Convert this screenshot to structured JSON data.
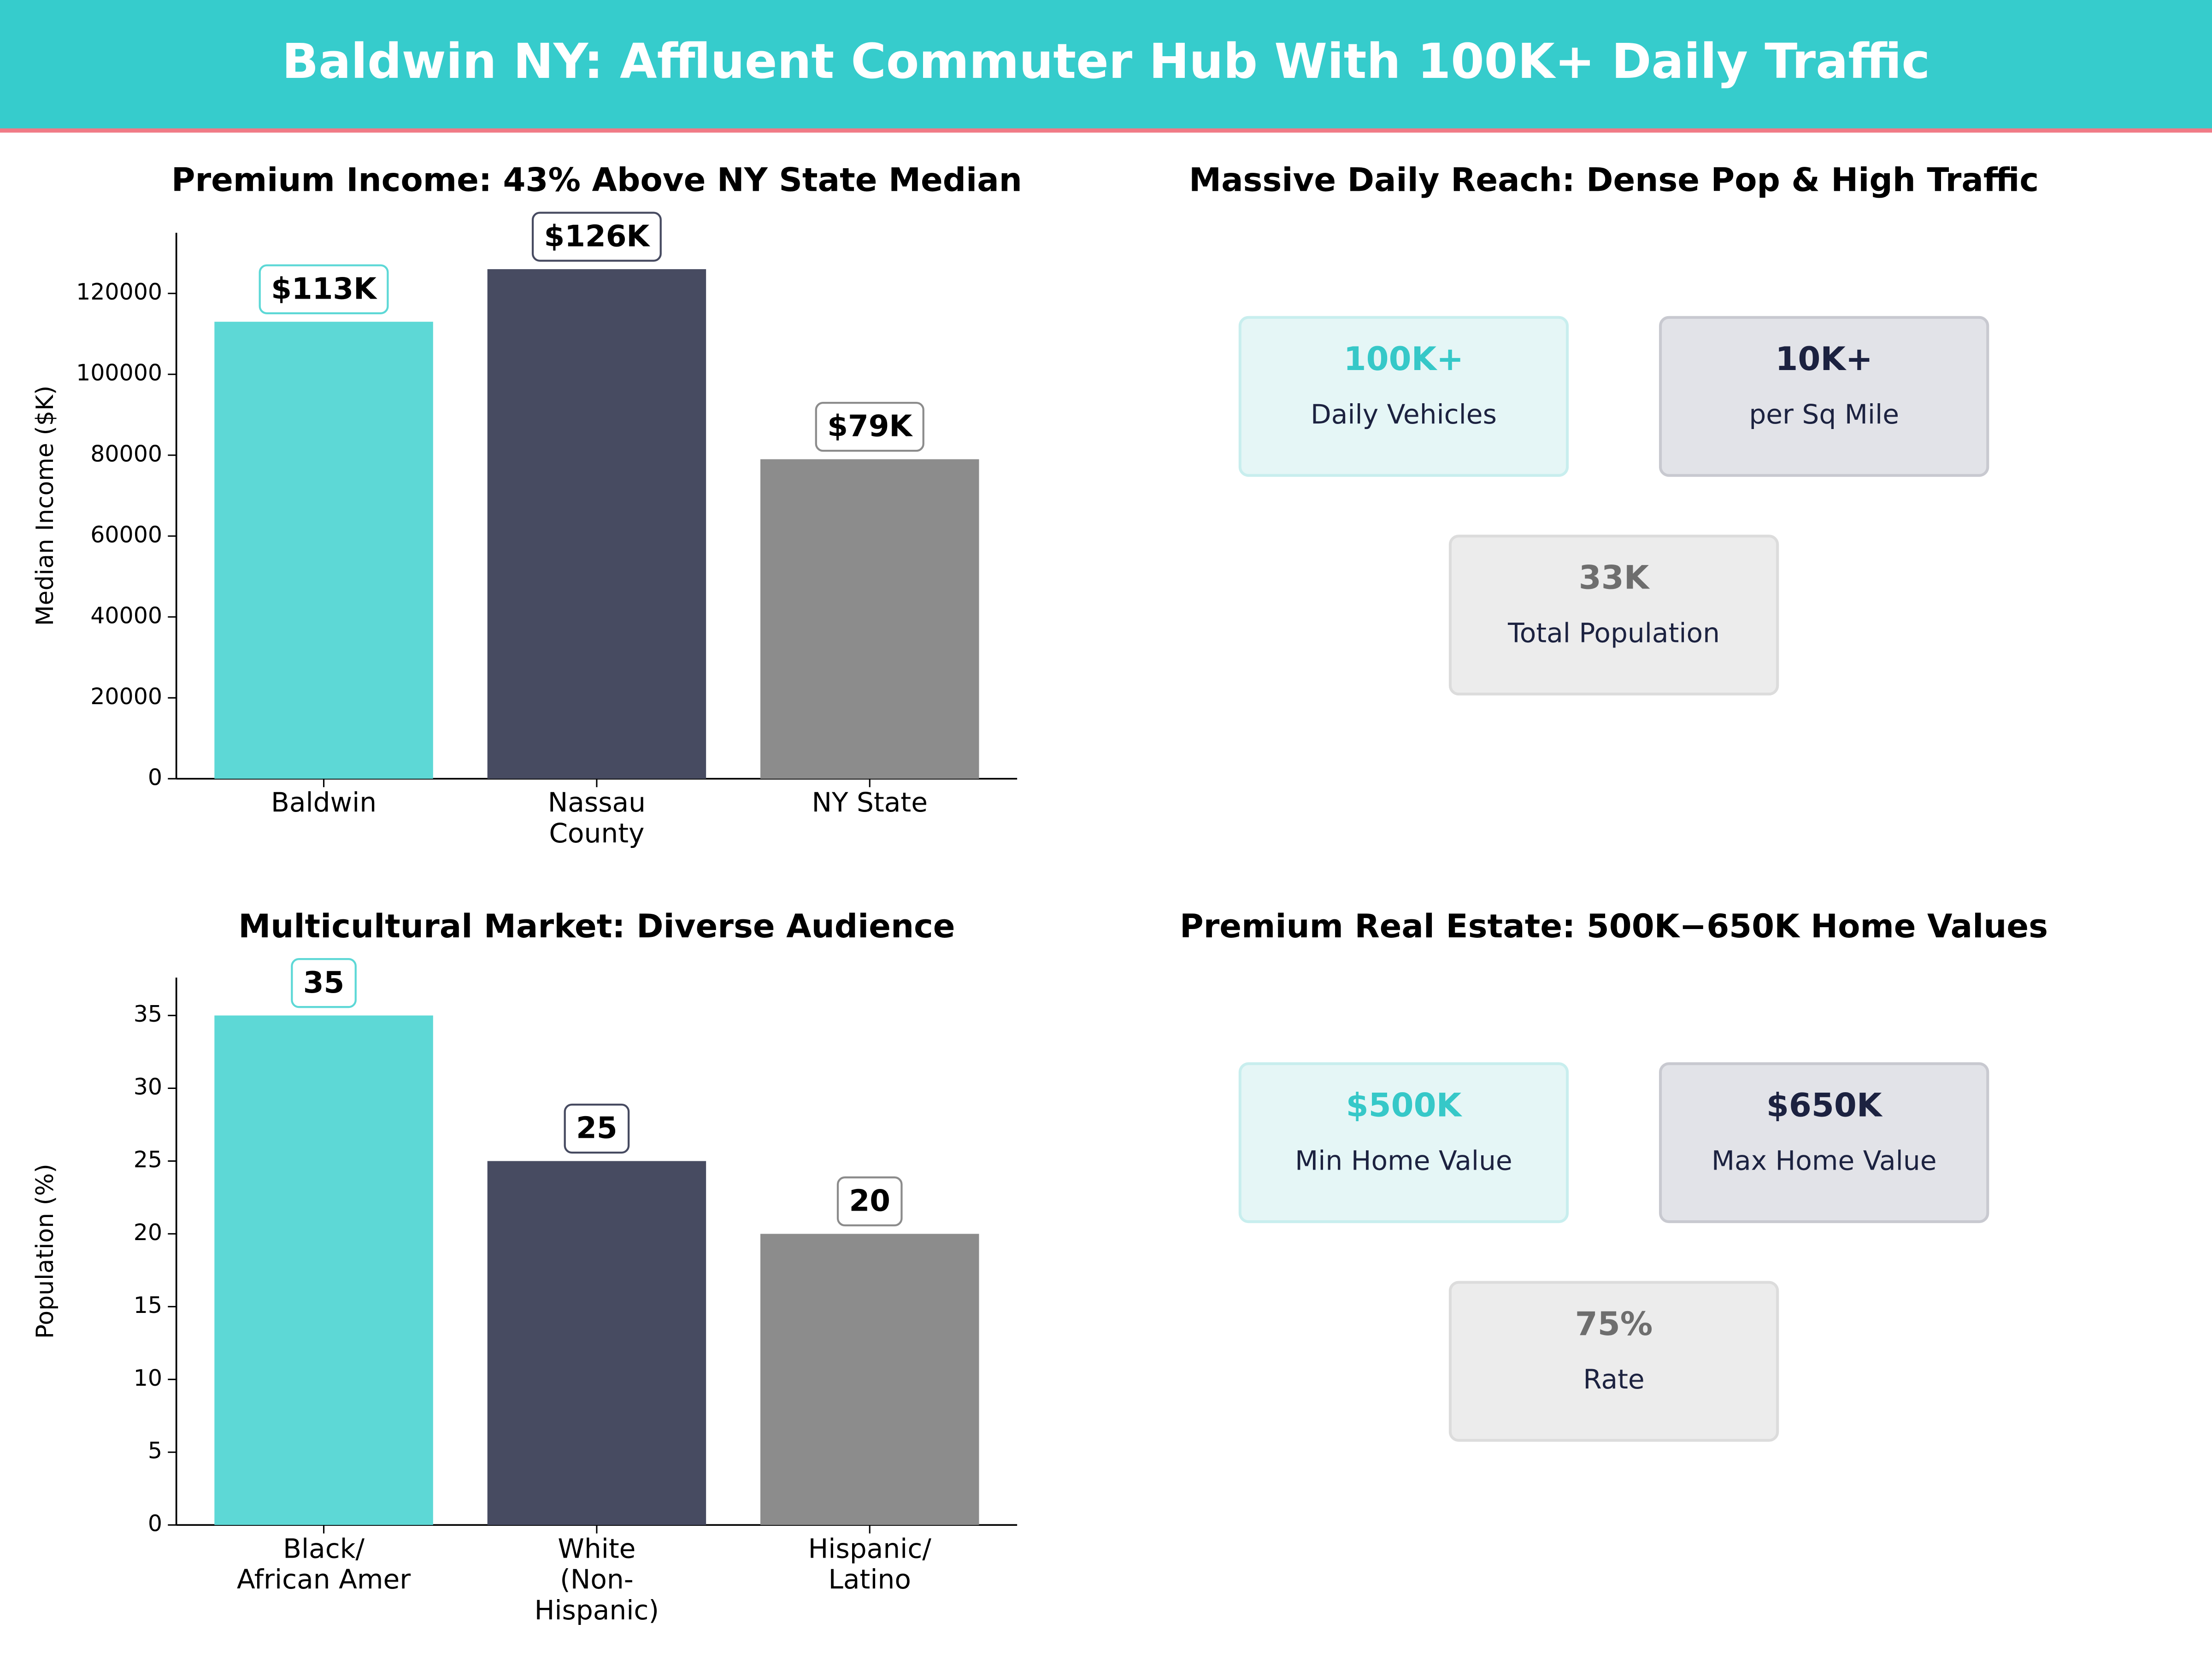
{
  "title": "Baldwin NY: Affluent Commuter Hub With 100K+ Daily Traffic",
  "chart_data": [
    {
      "type": "bar",
      "title": "Premium Income: 43% Above NY State Median",
      "y_label": "Median Income ($K)",
      "categories": [
        "Baldwin",
        "Nassau\nCounty",
        "NY State"
      ],
      "values": [
        113000,
        126000,
        79000
      ],
      "value_labels": [
        "$113K",
        "$126K",
        "$79K"
      ],
      "colors": [
        "#5dd8d6",
        "#474b61",
        "#8c8c8c"
      ],
      "ylim": [
        0,
        135000
      ],
      "yticks": [
        0,
        20000,
        40000,
        60000,
        80000,
        100000,
        120000
      ]
    },
    {
      "type": "kpi",
      "title": "Massive Daily Reach: Dense Pop & High Traffic",
      "cards": [
        {
          "value": "100K+",
          "label": "Daily Vehicles",
          "color": "#36c8c8"
        },
        {
          "value": "10K+",
          "label": "per Sq Mile",
          "color": "#1c2240"
        },
        {
          "value": "33K",
          "label": "Total Population",
          "color": "#6e6e6e"
        }
      ]
    },
    {
      "type": "bar",
      "title": "Multicultural Market: Diverse Audience",
      "y_label": "Population (%)",
      "categories": [
        "Black/\nAfrican Amer",
        "White\n(Non-\nHispanic)",
        "Hispanic/\nLatino"
      ],
      "values": [
        35,
        25,
        20
      ],
      "colors": [
        "#5dd8d6",
        "#474b61",
        "#8c8c8c"
      ],
      "ylim": [
        0,
        37.6
      ],
      "yticks": [
        0,
        5,
        10,
        15,
        20,
        25,
        30,
        35
      ]
    },
    {
      "type": "kpi",
      "title": "Premium Real Estate: 500K−650K Home Values",
      "cards": [
        {
          "value": "$500K",
          "label": "Min Home Value",
          "color": "#36c8c8"
        },
        {
          "value": "$650K",
          "label": "Max Home Value",
          "color": "#1c2240"
        },
        {
          "value": "75%",
          "label": "Rate",
          "color": "#6e6e6e"
        }
      ]
    }
  ]
}
